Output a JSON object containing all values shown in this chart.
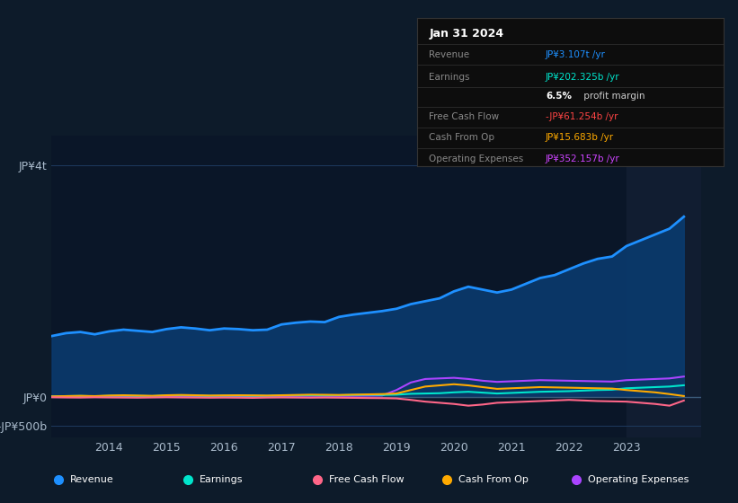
{
  "bg_color": "#0d1b2a",
  "plot_bg_color": "#0a1628",
  "grid_color": "#1e3a5f",
  "yticks_labels": [
    "JP¥4t",
    "JP¥0",
    "-JP¥500b"
  ],
  "yticks_values": [
    4000,
    0,
    -500
  ],
  "ylim": [
    -700,
    4500
  ],
  "years": [
    2013.0,
    2013.25,
    2013.5,
    2013.75,
    2014.0,
    2014.25,
    2014.5,
    2014.75,
    2015.0,
    2015.25,
    2015.5,
    2015.75,
    2016.0,
    2016.25,
    2016.5,
    2016.75,
    2017.0,
    2017.25,
    2017.5,
    2017.75,
    2018.0,
    2018.25,
    2018.5,
    2018.75,
    2019.0,
    2019.25,
    2019.5,
    2019.75,
    2020.0,
    2020.25,
    2020.5,
    2020.75,
    2021.0,
    2021.25,
    2021.5,
    2021.75,
    2022.0,
    2022.25,
    2022.5,
    2022.75,
    2023.0,
    2023.25,
    2023.5,
    2023.75,
    2024.0
  ],
  "revenue": [
    1050,
    1100,
    1120,
    1080,
    1130,
    1160,
    1140,
    1120,
    1170,
    1200,
    1180,
    1150,
    1180,
    1170,
    1150,
    1160,
    1250,
    1280,
    1300,
    1290,
    1380,
    1420,
    1450,
    1480,
    1520,
    1600,
    1650,
    1700,
    1820,
    1900,
    1850,
    1800,
    1850,
    1950,
    2050,
    2100,
    2200,
    2300,
    2380,
    2420,
    2600,
    2700,
    2800,
    2900,
    3107
  ],
  "earnings": [
    10,
    15,
    18,
    12,
    20,
    22,
    18,
    15,
    25,
    28,
    22,
    18,
    20,
    22,
    20,
    18,
    25,
    28,
    30,
    28,
    30,
    35,
    38,
    35,
    40,
    55,
    60,
    65,
    80,
    90,
    75,
    60,
    70,
    80,
    90,
    95,
    100,
    110,
    120,
    125,
    150,
    160,
    170,
    180,
    202
  ],
  "free_cash_flow": [
    -5,
    -8,
    -10,
    -5,
    -8,
    -10,
    -12,
    -8,
    -5,
    -8,
    -10,
    -12,
    -10,
    -12,
    -15,
    -10,
    -8,
    -10,
    -12,
    -10,
    -12,
    -15,
    -18,
    -20,
    -25,
    -50,
    -80,
    -100,
    -120,
    -150,
    -130,
    -100,
    -90,
    -80,
    -70,
    -60,
    -50,
    -60,
    -70,
    -75,
    -80,
    -100,
    -120,
    -150,
    -61
  ],
  "cash_from_op": [
    10,
    15,
    20,
    15,
    25,
    30,
    25,
    20,
    30,
    35,
    30,
    25,
    28,
    30,
    28,
    25,
    30,
    35,
    40,
    38,
    35,
    40,
    45,
    50,
    60,
    120,
    180,
    200,
    220,
    200,
    170,
    140,
    150,
    160,
    170,
    165,
    160,
    155,
    150,
    145,
    120,
    100,
    80,
    50,
    16
  ],
  "op_expenses": [
    5,
    8,
    10,
    7,
    10,
    12,
    10,
    8,
    12,
    15,
    12,
    10,
    12,
    14,
    12,
    10,
    15,
    18,
    20,
    18,
    18,
    20,
    22,
    25,
    120,
    250,
    310,
    320,
    330,
    310,
    280,
    260,
    270,
    280,
    290,
    285,
    280,
    275,
    270,
    265,
    290,
    300,
    310,
    320,
    352
  ],
  "revenue_color": "#1e90ff",
  "earnings_color": "#00e5cc",
  "fcf_color": "#ff6688",
  "cashop_color": "#ffaa00",
  "opex_color": "#aa44ff",
  "revenue_fill_color": "#0a3a6e",
  "xtick_years": [
    2014,
    2015,
    2016,
    2017,
    2018,
    2019,
    2020,
    2021,
    2022,
    2023
  ],
  "legend_items": [
    {
      "label": "Revenue",
      "color": "#1e90ff"
    },
    {
      "label": "Earnings",
      "color": "#00e5cc"
    },
    {
      "label": "Free Cash Flow",
      "color": "#ff6688"
    },
    {
      "label": "Cash From Op",
      "color": "#ffaa00"
    },
    {
      "label": "Operating Expenses",
      "color": "#aa44ff"
    }
  ],
  "infobox": {
    "date": "Jan 31 2024",
    "rows": [
      {
        "label": "Revenue",
        "value": "JP¥3.107t /yr",
        "value_color": "#1e90ff"
      },
      {
        "label": "Earnings",
        "value": "JP¥202.325b /yr",
        "value_color": "#00e5cc"
      },
      {
        "label": "",
        "value": "6.5% profit margin",
        "value_color": "#cccccc"
      },
      {
        "label": "Free Cash Flow",
        "value": "-JP¥61.254b /yr",
        "value_color": "#ff4444"
      },
      {
        "label": "Cash From Op",
        "value": "JP¥15.683b /yr",
        "value_color": "#ffaa00"
      },
      {
        "label": "Operating Expenses",
        "value": "JP¥352.157b /yr",
        "value_color": "#cc44ff"
      }
    ]
  }
}
